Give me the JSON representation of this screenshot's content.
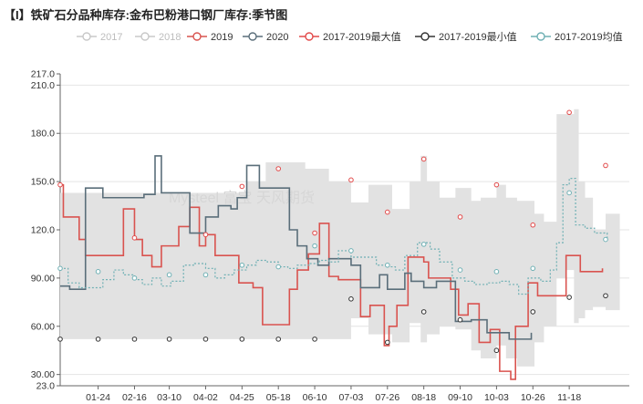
{
  "title": "【I】铁矿石分品种库存:金布巴粉港口钢厂库存:季节图",
  "watermark": "Mysteel  富宝  天风期货",
  "legend": [
    {
      "name": "2017",
      "color": "#c8c8c8",
      "marker": "circle-line"
    },
    {
      "name": "2018",
      "color": "#c8c8c8",
      "marker": "circle-line"
    },
    {
      "name": "2019",
      "color": "#d9534f",
      "marker": "circle-line"
    },
    {
      "name": "2020",
      "color": "#5a6e7a",
      "marker": "circle-line"
    },
    {
      "name": "2017-2019最大值",
      "color": "#e24a4a",
      "marker": "circle-line"
    },
    {
      "name": "2017-2019最小值",
      "color": "#333333",
      "marker": "circle-line"
    },
    {
      "name": "2017-2019均值",
      "color": "#6fb0b4",
      "marker": "circle-line"
    }
  ],
  "chart_data": {
    "type": "line",
    "ylim": [
      23,
      217
    ],
    "yticks": [
      "23.0",
      "30.00",
      "60.00",
      "90.00",
      "120.0",
      "150.0",
      "180.0",
      "210.0",
      "217.0"
    ],
    "xticks": [
      "01-24",
      "02-16",
      "03-10",
      "04-02",
      "04-25",
      "05-18",
      "06-10",
      "07-03",
      "07-26",
      "08-18",
      "09-10",
      "10-03",
      "10-26",
      "11-18"
    ],
    "x_days": [
      24,
      47,
      69,
      92,
      115,
      138,
      161,
      184,
      207,
      230,
      253,
      276,
      299,
      322
    ],
    "range_band": {
      "x": [
        0,
        3,
        60,
        90,
        118,
        130,
        155,
        170,
        184,
        195,
        210,
        221,
        228,
        232,
        240,
        250,
        260,
        266,
        276,
        282,
        289,
        300,
        306,
        314,
        320,
        325,
        328,
        332,
        337,
        345,
        350
      ],
      "max": [
        143,
        143,
        143,
        143,
        150,
        162,
        158,
        150,
        137,
        148,
        133,
        150,
        166,
        150,
        140,
        146,
        138,
        140,
        148,
        140,
        138,
        130,
        125,
        192,
        192,
        195,
        150,
        140,
        120,
        130,
        130
      ],
      "min": [
        52,
        52,
        52,
        52,
        52,
        52,
        52,
        52,
        65,
        55,
        50,
        62,
        50,
        55,
        60,
        58,
        45,
        40,
        48,
        40,
        35,
        50,
        60,
        90,
        95,
        62,
        65,
        70,
        72,
        70,
        70
      ]
    },
    "series": [
      {
        "name": "2019",
        "color": "#d9534f",
        "x": [
          0,
          2,
          7,
          12,
          16,
          27,
          40,
          47,
          52,
          58,
          64,
          69,
          75,
          82,
          88,
          92,
          98,
          103,
          113,
          122,
          128,
          140,
          145,
          150,
          157,
          164,
          170,
          176,
          184,
          190,
          196,
          205,
          208,
          213,
          220,
          230,
          233,
          238,
          247,
          252,
          258,
          265,
          272,
          278,
          285,
          288,
          296,
          302,
          310,
          320,
          329,
          336,
          343
        ],
        "y": [
          148,
          128,
          128,
          114,
          104,
          104,
          133,
          114,
          104,
          97,
          110,
          110,
          122,
          134,
          110,
          117,
          104,
          104,
          87,
          84,
          61,
          61,
          83,
          95,
          105,
          124,
          91,
          89,
          89,
          66,
          73,
          48,
          60,
          73,
          103,
          100,
          90,
          90,
          83,
          67,
          74,
          50,
          58,
          32,
          27,
          60,
          87,
          79,
          79,
          104,
          94,
          94,
          96
        ]
      },
      {
        "name": "2020",
        "color": "#5a6e7a",
        "x": [
          0,
          6,
          12,
          16,
          20,
          27,
          38,
          47,
          53,
          60,
          64,
          68,
          76,
          82,
          88,
          92,
          95,
          100,
          108,
          112,
          118,
          126,
          140,
          145,
          150,
          156,
          163,
          170,
          184,
          190,
          196,
          202,
          207,
          212,
          218,
          222,
          230,
          238,
          250,
          257,
          260,
          270,
          278,
          284,
          290,
          298
        ],
        "y": [
          85,
          83,
          83,
          146,
          146,
          140,
          140,
          140,
          142,
          166,
          143,
          143,
          143,
          118,
          118,
          128,
          128,
          135,
          133,
          140,
          160,
          146,
          146,
          120,
          110,
          102,
          98,
          102,
          98,
          84,
          84,
          92,
          83,
          83,
          93,
          88,
          84,
          88,
          63,
          63,
          64,
          56,
          56,
          52,
          52,
          56
        ]
      },
      {
        "name": "2017-2019均值",
        "color": "#6fb0b4",
        "dashed": true,
        "x": [
          0,
          5,
          12,
          20,
          27,
          34,
          40,
          47,
          52,
          58,
          64,
          70,
          78,
          85,
          92,
          98,
          104,
          110,
          118,
          124,
          131,
          138,
          144,
          150,
          158,
          164,
          170,
          176,
          184,
          192,
          200,
          206,
          212,
          218,
          226,
          234,
          240,
          248,
          256,
          262,
          270,
          278,
          284,
          290,
          296,
          304,
          310,
          314,
          318,
          322,
          326,
          332,
          338,
          346
        ],
        "y": [
          96,
          87,
          84,
          84,
          89,
          95,
          92,
          89,
          86,
          90,
          85,
          88,
          98,
          99,
          96,
          90,
          92,
          95,
          98,
          101,
          100,
          97,
          96,
          98,
          99,
          101,
          100,
          107,
          103,
          103,
          98,
          97,
          95,
          104,
          112,
          108,
          100,
          90,
          88,
          86,
          87,
          88,
          86,
          80,
          90,
          88,
          95,
          112,
          148,
          152,
          123,
          121,
          118,
          114
        ]
      }
    ],
    "max_markers": {
      "color": "#e24a4a",
      "x": [
        0,
        47,
        92,
        115,
        138,
        161,
        184,
        207,
        230,
        253,
        276,
        299,
        322,
        345
      ],
      "y": [
        148,
        115,
        117,
        147,
        158,
        118,
        151,
        131,
        164,
        128,
        148,
        123,
        193,
        160
      ]
    },
    "min_markers": {
      "color": "#333333",
      "x": [
        0,
        24,
        47,
        69,
        92,
        115,
        138,
        161,
        184,
        207,
        230,
        253,
        276,
        299,
        322,
        345
      ],
      "y": [
        52,
        52,
        52,
        52,
        52,
        52,
        52,
        52,
        77,
        50,
        69,
        64,
        45,
        69,
        78,
        79
      ]
    },
    "avg_markers": {
      "color": "#6fb0b4",
      "x": [
        0,
        24,
        47,
        69,
        92,
        115,
        138,
        161,
        184,
        207,
        230,
        253,
        276,
        299,
        322,
        345
      ],
      "y": [
        96,
        94,
        90,
        92,
        92,
        98,
        97,
        110,
        107,
        98,
        111,
        95,
        94,
        96,
        143,
        114
      ]
    }
  }
}
